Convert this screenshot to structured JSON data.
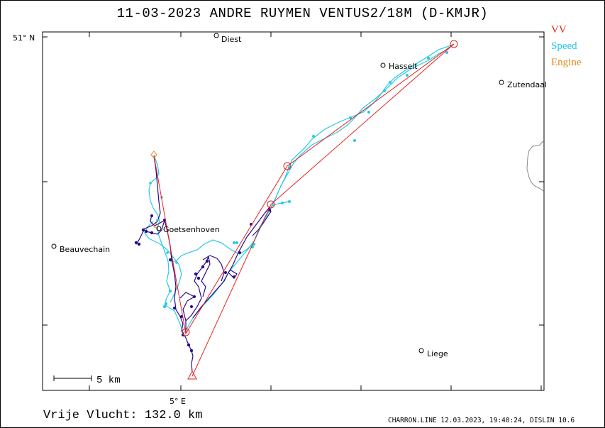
{
  "title": "11-03-2023   ANDRE RUYMEN   VENTUS2/18M (D-KMJR)",
  "legend": [
    {
      "label": "VV",
      "color": "#e8221b"
    },
    {
      "label": "Speed",
      "color": "#26c9e6"
    },
    {
      "label": "Engine",
      "color": "#e48a1b"
    }
  ],
  "axis": {
    "lat_label": "51° N",
    "lon_label": "5° E"
  },
  "places": [
    {
      "name": "Diest"
    },
    {
      "name": "Hasselt"
    },
    {
      "name": "Zutendaal"
    },
    {
      "name": "Goetsenhoven"
    },
    {
      "name": "Beauvechain"
    },
    {
      "name": "Liege"
    }
  ],
  "scale_bar": {
    "label": "5 km"
  },
  "distance": "Vrije Vlucht:  132.0 km",
  "footer": "CHARRON.LINE 12.03.2023, 19:40:24, DISLIN 10.6",
  "colors": {
    "route": "#e8221b",
    "track_speed": "#26c9e6",
    "track_climb": "#2b0a8a",
    "border": "#888888"
  }
}
